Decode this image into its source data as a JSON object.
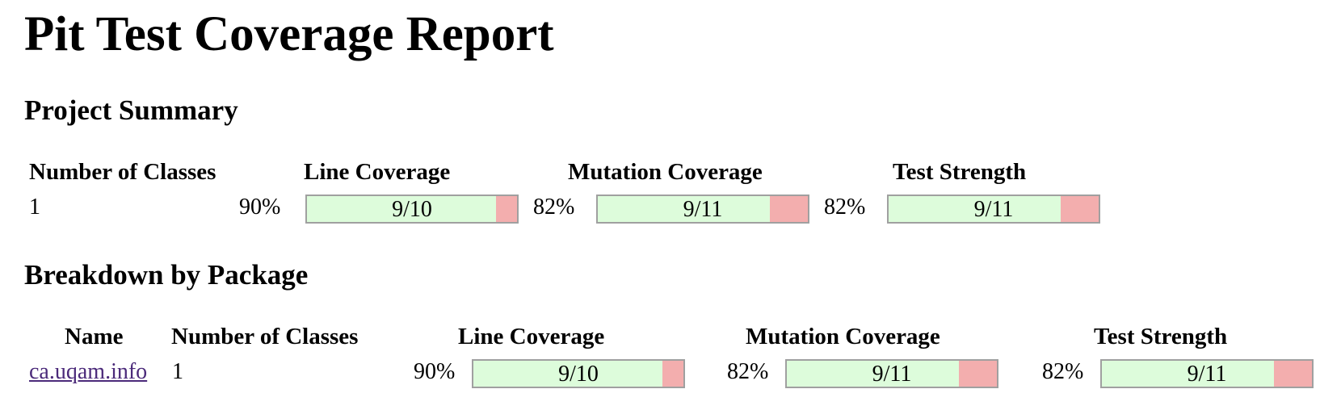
{
  "page": {
    "title": "Pit Test Coverage Report"
  },
  "project_summary": {
    "heading": "Project Summary",
    "headers": {
      "classes": "Number of Classes",
      "line": "Line Coverage",
      "mutation": "Mutation Coverage",
      "strength": "Test Strength"
    },
    "row": {
      "classes": "1",
      "line": {
        "percent": "90%",
        "label": "9/10",
        "fraction": 0.9
      },
      "mutation": {
        "percent": "82%",
        "label": "9/11",
        "fraction": 0.818
      },
      "strength": {
        "percent": "82%",
        "label": "9/11",
        "fraction": 0.818
      }
    }
  },
  "breakdown": {
    "heading": "Breakdown by Package",
    "headers": {
      "name": "Name",
      "classes": "Number of Classes",
      "line": "Line Coverage",
      "mutation": "Mutation Coverage",
      "strength": "Test Strength"
    },
    "rows": [
      {
        "name": "ca.uqam.info",
        "classes": "1",
        "line": {
          "percent": "90%",
          "label": "9/10",
          "fraction": 0.9
        },
        "mutation": {
          "percent": "82%",
          "label": "9/11",
          "fraction": 0.818
        },
        "strength": {
          "percent": "82%",
          "label": "9/11",
          "fraction": 0.818
        }
      }
    ]
  },
  "colors": {
    "covered": "#ddfcdb",
    "uncovered": "#f3aeae",
    "link": "#4b2a7a"
  }
}
